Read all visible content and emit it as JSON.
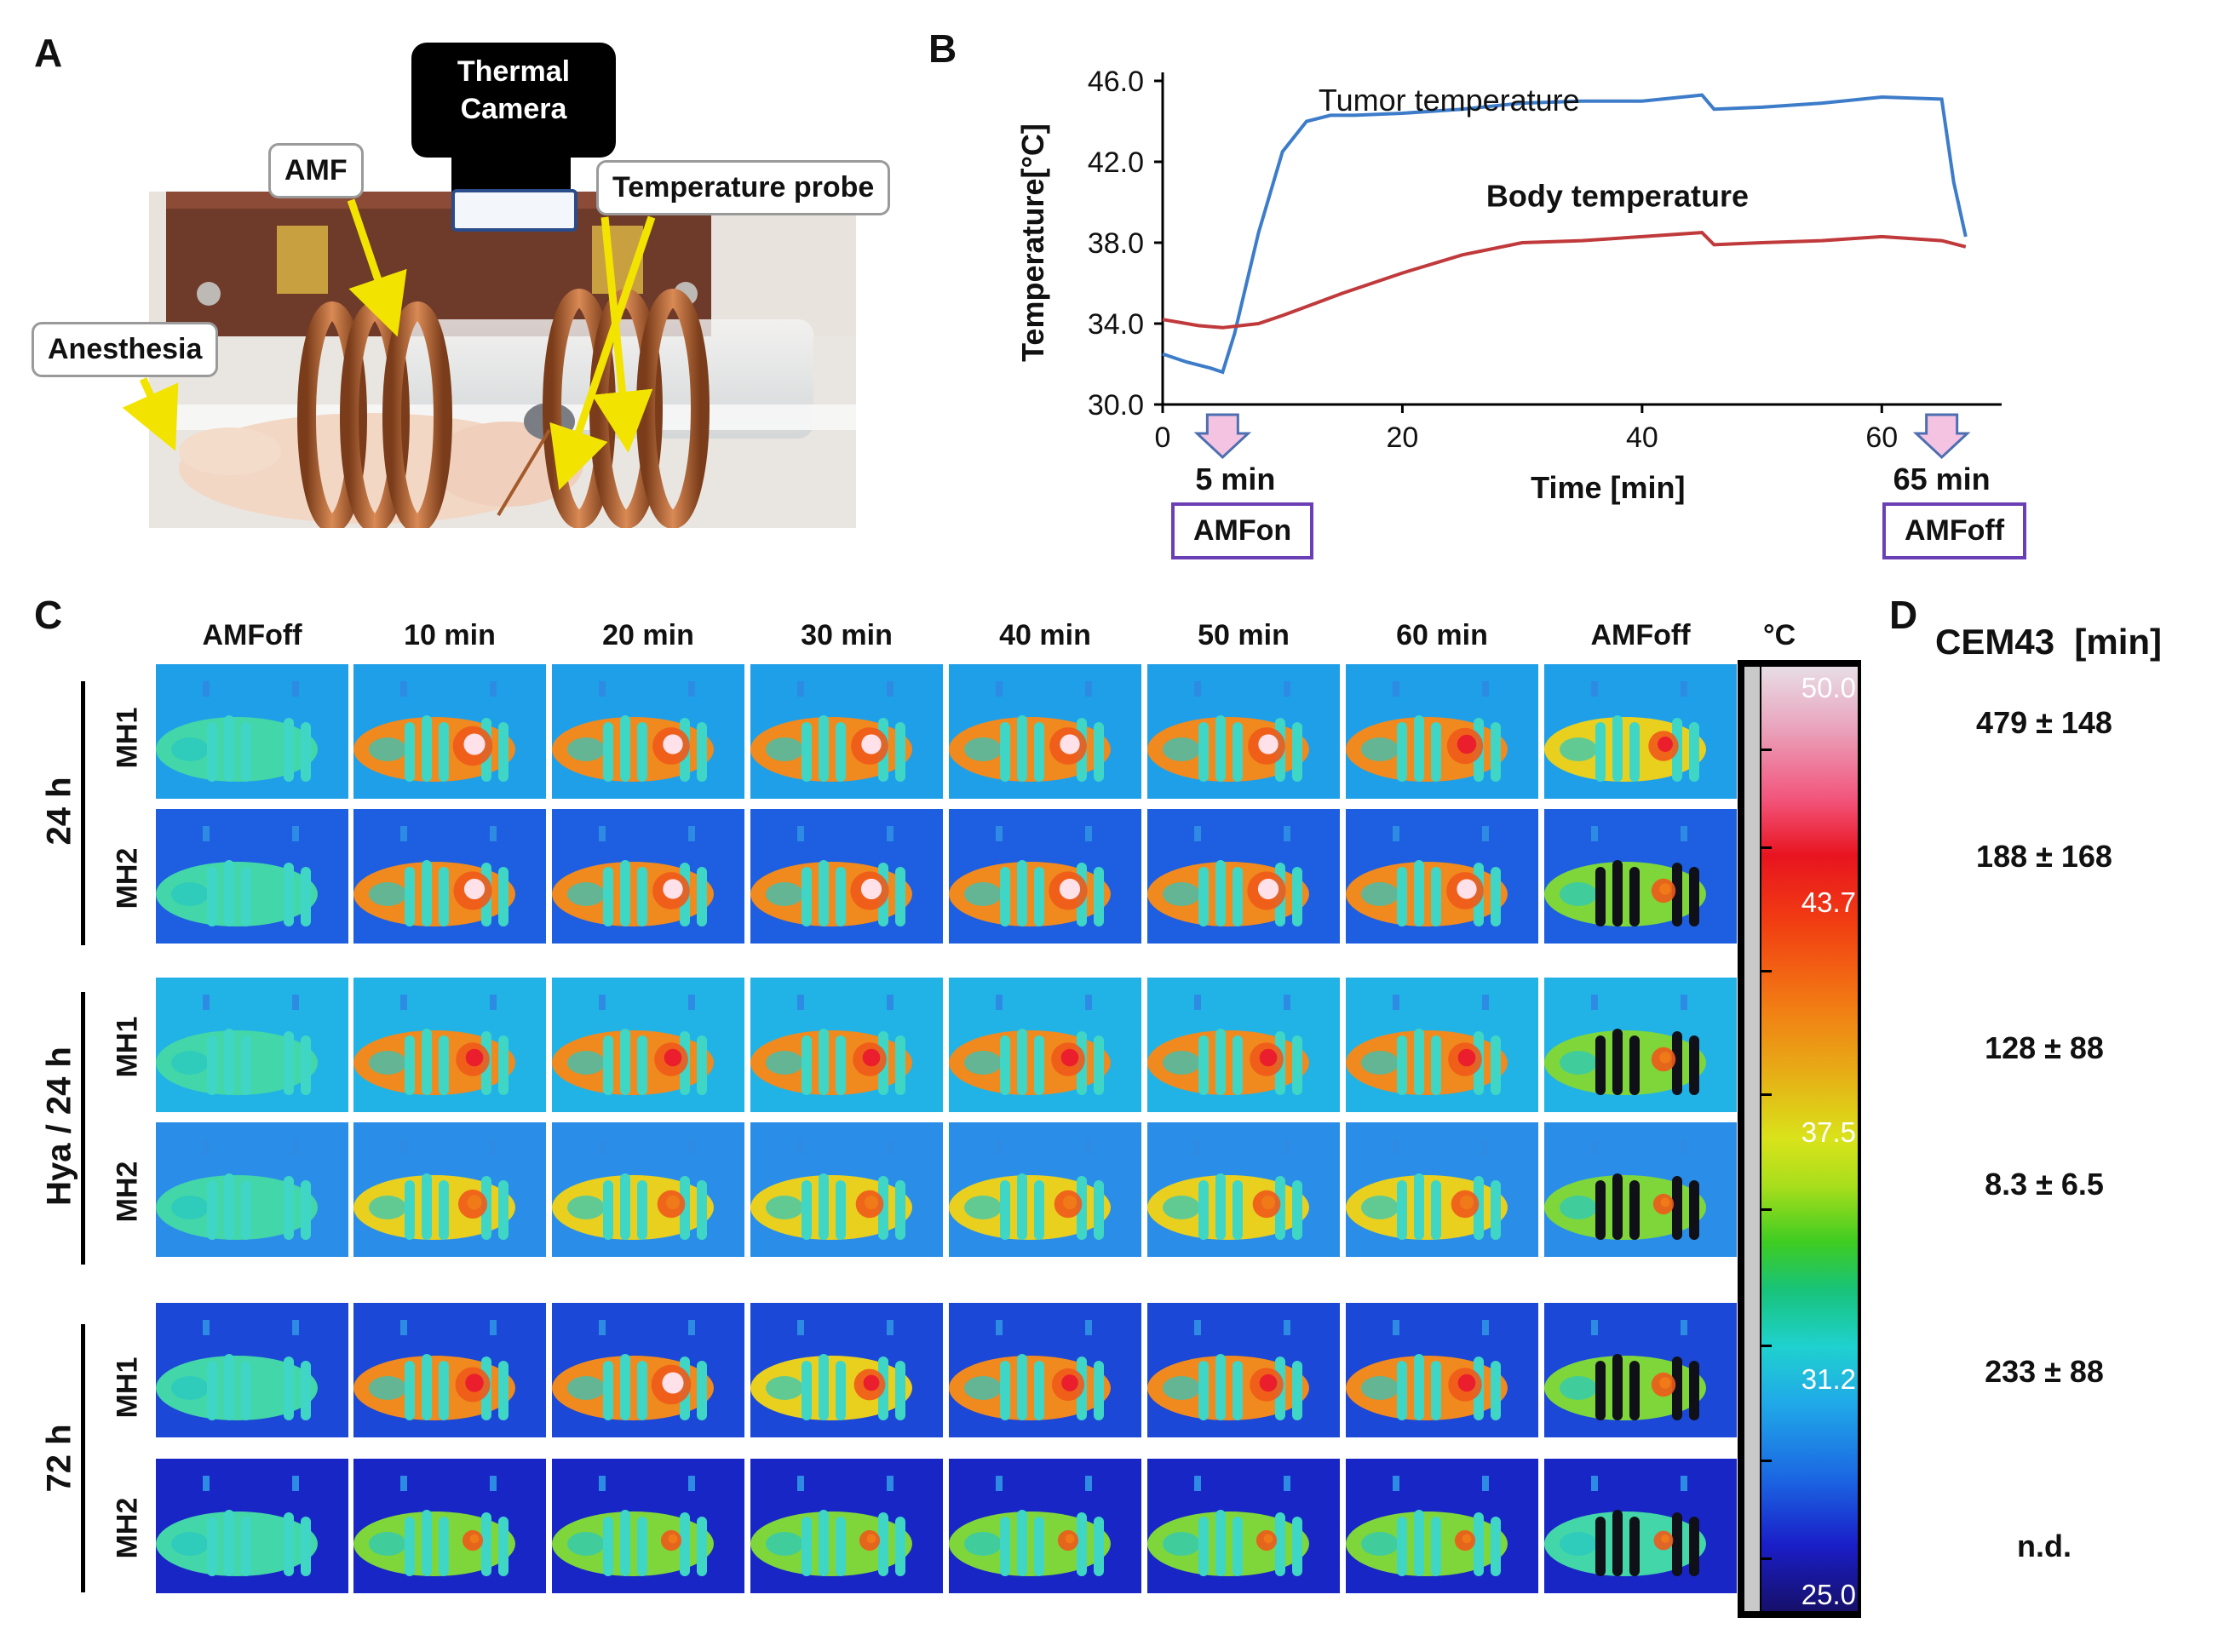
{
  "panels": {
    "a": "A",
    "b": "B",
    "c": "C",
    "d": "D"
  },
  "panel_a": {
    "thermal_camera": "Thermal\nCamera",
    "amf": "AMF",
    "temperature_probe": "Temperature probe",
    "anesthesia": "Anesthesia"
  },
  "chart_data": {
    "type": "line",
    "title": "",
    "xlabel": "Time [min]",
    "ylabel": "Temperature[°C]",
    "xlim": [
      0,
      70
    ],
    "ylim": [
      30,
      46
    ],
    "xticks": [
      "0",
      "20",
      "40",
      "60"
    ],
    "yticks": [
      "30.0",
      "34.0",
      "38.0",
      "42.0",
      "46.0"
    ],
    "series": [
      {
        "name": "Tumor temperature",
        "color": "#3d7cc9",
        "x": [
          0,
          2,
          4,
          5,
          6,
          8,
          10,
          12,
          14,
          16,
          20,
          25,
          30,
          35,
          40,
          45,
          46,
          50,
          55,
          60,
          65,
          66,
          67
        ],
        "y": [
          32.5,
          32.1,
          31.8,
          31.6,
          33.5,
          38.5,
          42.5,
          44.0,
          44.3,
          44.3,
          44.4,
          44.6,
          44.9,
          45.0,
          45.0,
          45.3,
          44.6,
          44.7,
          44.9,
          45.2,
          45.1,
          41.0,
          38.3
        ]
      },
      {
        "name": "Body temperature",
        "color": "#c0393b",
        "x": [
          0,
          3,
          5,
          8,
          10,
          15,
          20,
          25,
          30,
          35,
          40,
          45,
          46,
          50,
          55,
          60,
          65,
          67
        ],
        "y": [
          34.2,
          33.9,
          33.8,
          34.0,
          34.4,
          35.5,
          36.5,
          37.4,
          38.0,
          38.1,
          38.3,
          38.5,
          37.9,
          38.0,
          38.1,
          38.3,
          38.1,
          37.8
        ]
      }
    ],
    "annotations": [
      {
        "label": "5 min",
        "box": "AMFon"
      },
      {
        "label": "65 min",
        "box": "AMFoff"
      }
    ]
  },
  "panel_c": {
    "columns": [
      "AMFoff",
      "10 min",
      "20 min",
      "30 min",
      "40 min",
      "50 min",
      "60 min",
      "AMFoff"
    ],
    "unit": "°C",
    "groups": [
      "24 h",
      "Hya / 24 h",
      "72 h"
    ],
    "row_labels": [
      "MH1",
      "MH2",
      "MH1",
      "MH2",
      "MH1",
      "MH2"
    ],
    "colorbar_labels": [
      "50.0",
      "43.7",
      "37.5",
      "31.2",
      "25.0"
    ],
    "hot_spot_intensity": [
      [
        0,
        0.95,
        0.85,
        0.85,
        0.85,
        0.85,
        0.8,
        0.55
      ],
      [
        0,
        0.9,
        0.85,
        0.9,
        0.9,
        0.9,
        0.85,
        0.3
      ],
      [
        0,
        0.7,
        0.7,
        0.7,
        0.7,
        0.7,
        0.7,
        0.3
      ],
      [
        0,
        0.5,
        0.45,
        0.45,
        0.45,
        0.45,
        0.45,
        0.15
      ],
      [
        0,
        0.75,
        0.95,
        0.6,
        0.65,
        0.7,
        0.7,
        0.3
      ],
      [
        0,
        0.15,
        0.15,
        0.15,
        0.15,
        0.15,
        0.15,
        0.1
      ]
    ]
  },
  "panel_d": {
    "title": "CEM43  [min]",
    "values": [
      "479 ± 148",
      "188 ± 168",
      "128 ± 88",
      "8.3 ± 6.5",
      "233 ± 88",
      "n.d."
    ]
  }
}
